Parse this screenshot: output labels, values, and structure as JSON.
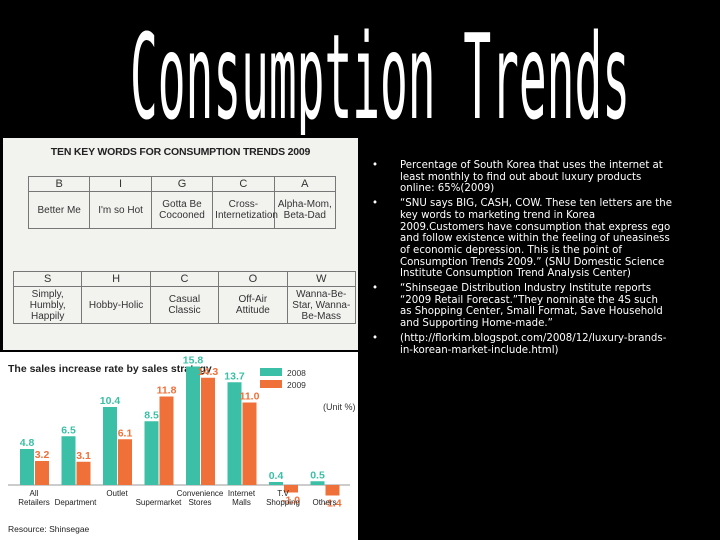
{
  "slide": {
    "title": "Consumption Trends"
  },
  "keywords": {
    "title": "TEN KEY WORDS FOR CONSUMPTION TRENDS 2009",
    "row1": [
      {
        "letter": "B",
        "phrase": "Better Me"
      },
      {
        "letter": "I",
        "phrase": "I'm so Hot"
      },
      {
        "letter": "G",
        "phrase": "Gotta Be Cocooned"
      },
      {
        "letter": "C",
        "phrase": "Cross-Internetization"
      },
      {
        "letter": "A",
        "phrase": "Alpha-Mom, Beta-Dad"
      }
    ],
    "row2": [
      {
        "letter": "S",
        "phrase": "Simply, Humbly, Happily"
      },
      {
        "letter": "H",
        "phrase": "Hobby-Holic"
      },
      {
        "letter": "C",
        "phrase": "Casual Classic"
      },
      {
        "letter": "O",
        "phrase": "Off-Air Attitude"
      },
      {
        "letter": "W",
        "phrase": "Wanna-Be-Star, Wanna-Be-Mass"
      }
    ]
  },
  "chart_data": {
    "type": "bar",
    "title": "The sales increase rate by sales strategy",
    "unit": "(Unit %)",
    "source": "Resource: Shinsegae",
    "categories": [
      "All Retailers",
      "Department",
      "Outlet",
      "Supermarket",
      "Convenience Stores",
      "Internet Malls",
      "T.V Shopping",
      "Others"
    ],
    "series": [
      {
        "name": "2008",
        "color": "#3bbfa6",
        "values": [
          4.8,
          6.5,
          10.4,
          8.5,
          15.8,
          13.7,
          0.4,
          0.5
        ]
      },
      {
        "name": "2009",
        "color": "#f0703a",
        "values": [
          3.2,
          3.1,
          6.1,
          11.8,
          14.3,
          11.0,
          -1.0,
          -1.4
        ]
      }
    ],
    "value_labels": {
      "2008": [
        "4.8",
        "6.5",
        "10.4",
        "8.5",
        "15.8",
        "13.7",
        "0.4",
        "0.5"
      ],
      "2009": [
        "3.2",
        "3.1",
        "6.1",
        "11.8",
        "14.3",
        "11.0",
        "-1.0",
        "-1.4"
      ]
    },
    "ylim": [
      -1.5,
      16
    ],
    "legend": "top-right",
    "grid": false
  },
  "bullets": [
    {
      "symbol": "•",
      "text": "Percentage of South Korea that uses the internet at least monthly to find out about luxury products online: 65%(2009)"
    },
    {
      "symbol": "•",
      "text": "“SNU says BIG, CASH, COW. These ten letters are the key words to marketing trend in Korea 2009.Customers have consumption that express ego and follow existence within the feeling of uneasiness of economic depression. This is the point of Consumption Trends 2009.” (SNU Domestic Science Institute Consumption Trend Analysis Center)"
    },
    {
      "symbol": "•",
      "text": "“Shinsegae Distribution Industry Institute reports “2009 Retail Forecast.”They nominate the 4S such as Shopping Center, Small Format, Save Household and Supporting Home-made.”"
    },
    {
      "symbol": "•",
      "text": "(http://florkim.blogspot.com/2008/12/luxury-brands-in-korean-market-include.html)"
    }
  ]
}
